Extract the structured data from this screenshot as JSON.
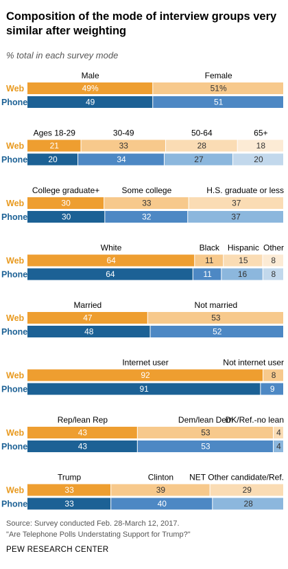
{
  "title": "Composition of the mode of interview groups very similar after weighting",
  "subtitle": "% total in each survey mode",
  "source_line1": "Source: Survey conducted Feb. 28-March 12, 2017.",
  "source_line2": "\"Are Telephone Polls Understating Support for Trump?\"",
  "organization": "PEW RESEARCH CENTER",
  "colors": {
    "web": [
      "#EE9E30",
      "#F7C98C",
      "#FADCB4",
      "#FCEBD5"
    ],
    "phone": [
      "#1C6195",
      "#4D88C4",
      "#8CB7DD",
      "#C2D8EC"
    ],
    "row_label": "#E8991E",
    "text_light": "#ffffff",
    "text_dark": "#333333"
  },
  "chart_data": {
    "type": "bar",
    "orientation": "horizontal",
    "stacked": true,
    "row_labels": [
      "Web",
      "Phone"
    ],
    "groups": [
      {
        "categories": [
          "Male",
          "Female"
        ],
        "web": [
          49,
          51
        ],
        "phone": [
          49,
          51
        ],
        "web_value_labels": [
          "49%",
          "51%"
        ]
      },
      {
        "categories": [
          "Ages 18-29",
          "30-49",
          "50-64",
          "65+"
        ],
        "web": [
          21,
          33,
          28,
          18
        ],
        "phone": [
          20,
          34,
          27,
          20
        ]
      },
      {
        "categories": [
          "College graduate+",
          "Some college",
          "H.S. graduate or less"
        ],
        "web": [
          30,
          33,
          37
        ],
        "phone": [
          30,
          32,
          37
        ]
      },
      {
        "categories": [
          "White",
          "Black",
          "Hispanic",
          "Other"
        ],
        "web": [
          64,
          11,
          15,
          8
        ],
        "phone": [
          64,
          11,
          16,
          8
        ]
      },
      {
        "categories": [
          "Married",
          "Not married"
        ],
        "web": [
          47,
          53
        ],
        "phone": [
          48,
          52
        ]
      },
      {
        "categories": [
          "Internet user",
          "Not internet user"
        ],
        "web": [
          92,
          8
        ],
        "phone": [
          91,
          9
        ]
      },
      {
        "categories": [
          "Rep/lean Rep",
          "Dem/lean Dem",
          "DK/Ref.-no lean"
        ],
        "web": [
          43,
          53,
          4
        ],
        "phone": [
          43,
          53,
          4
        ]
      },
      {
        "categories": [
          "Trump",
          "Clinton",
          "NET Other candidate/Ref."
        ],
        "web": [
          33,
          39,
          29
        ],
        "phone": [
          33,
          40,
          28
        ]
      }
    ]
  }
}
